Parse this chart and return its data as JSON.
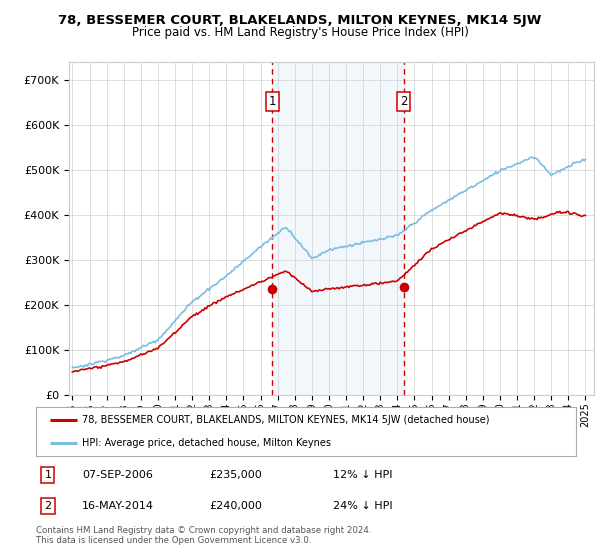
{
  "title": "78, BESSEMER COURT, BLAKELANDS, MILTON KEYNES, MK14 5JW",
  "subtitle": "Price paid vs. HM Land Registry's House Price Index (HPI)",
  "ylabel_ticks": [
    "£0",
    "£100K",
    "£200K",
    "£300K",
    "£400K",
    "£500K",
    "£600K",
    "£700K"
  ],
  "ytick_values": [
    0,
    100000,
    200000,
    300000,
    400000,
    500000,
    600000,
    700000
  ],
  "ylim": [
    0,
    740000
  ],
  "hpi_color": "#7bbde0",
  "price_color": "#cc0000",
  "vline_color": "#cc0000",
  "shade_color": "#daeaf5",
  "transaction1": {
    "date_num": 2006.69,
    "price": 235000,
    "label": "1"
  },
  "transaction2": {
    "date_num": 2014.37,
    "price": 240000,
    "label": "2"
  },
  "legend_property_label": "78, BESSEMER COURT, BLAKELANDS, MILTON KEYNES, MK14 5JW (detached house)",
  "legend_hpi_label": "HPI: Average price, detached house, Milton Keynes",
  "footnote_line1": "Contains HM Land Registry data © Crown copyright and database right 2024.",
  "footnote_line2": "This data is licensed under the Open Government Licence v3.0.",
  "info_rows": [
    {
      "num": "1",
      "date": "07-SEP-2006",
      "price": "£235,000",
      "pct": "12% ↓ HPI"
    },
    {
      "num": "2",
      "date": "16-MAY-2014",
      "price": "£240,000",
      "pct": "24% ↓ HPI"
    }
  ],
  "background_color": "#ffffff"
}
